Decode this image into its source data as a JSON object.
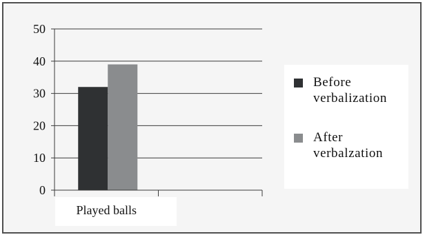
{
  "chart_data": {
    "type": "bar",
    "categories": [
      "Played balls"
    ],
    "series": [
      {
        "name": "Before verbalization",
        "label_lines": [
          "Before",
          "verbalization"
        ],
        "values": [
          32
        ],
        "color": "#2f3133"
      },
      {
        "name": "After verbalzation",
        "label_lines": [
          "After",
          "verbalzation"
        ],
        "values": [
          39
        ],
        "color": "#8a8c8e"
      }
    ],
    "ylim": [
      0,
      50
    ],
    "yticks": [
      0,
      10,
      20,
      30,
      40,
      50
    ],
    "grid": true,
    "legend_position": "right",
    "title": "",
    "xlabel": "",
    "ylabel": ""
  }
}
